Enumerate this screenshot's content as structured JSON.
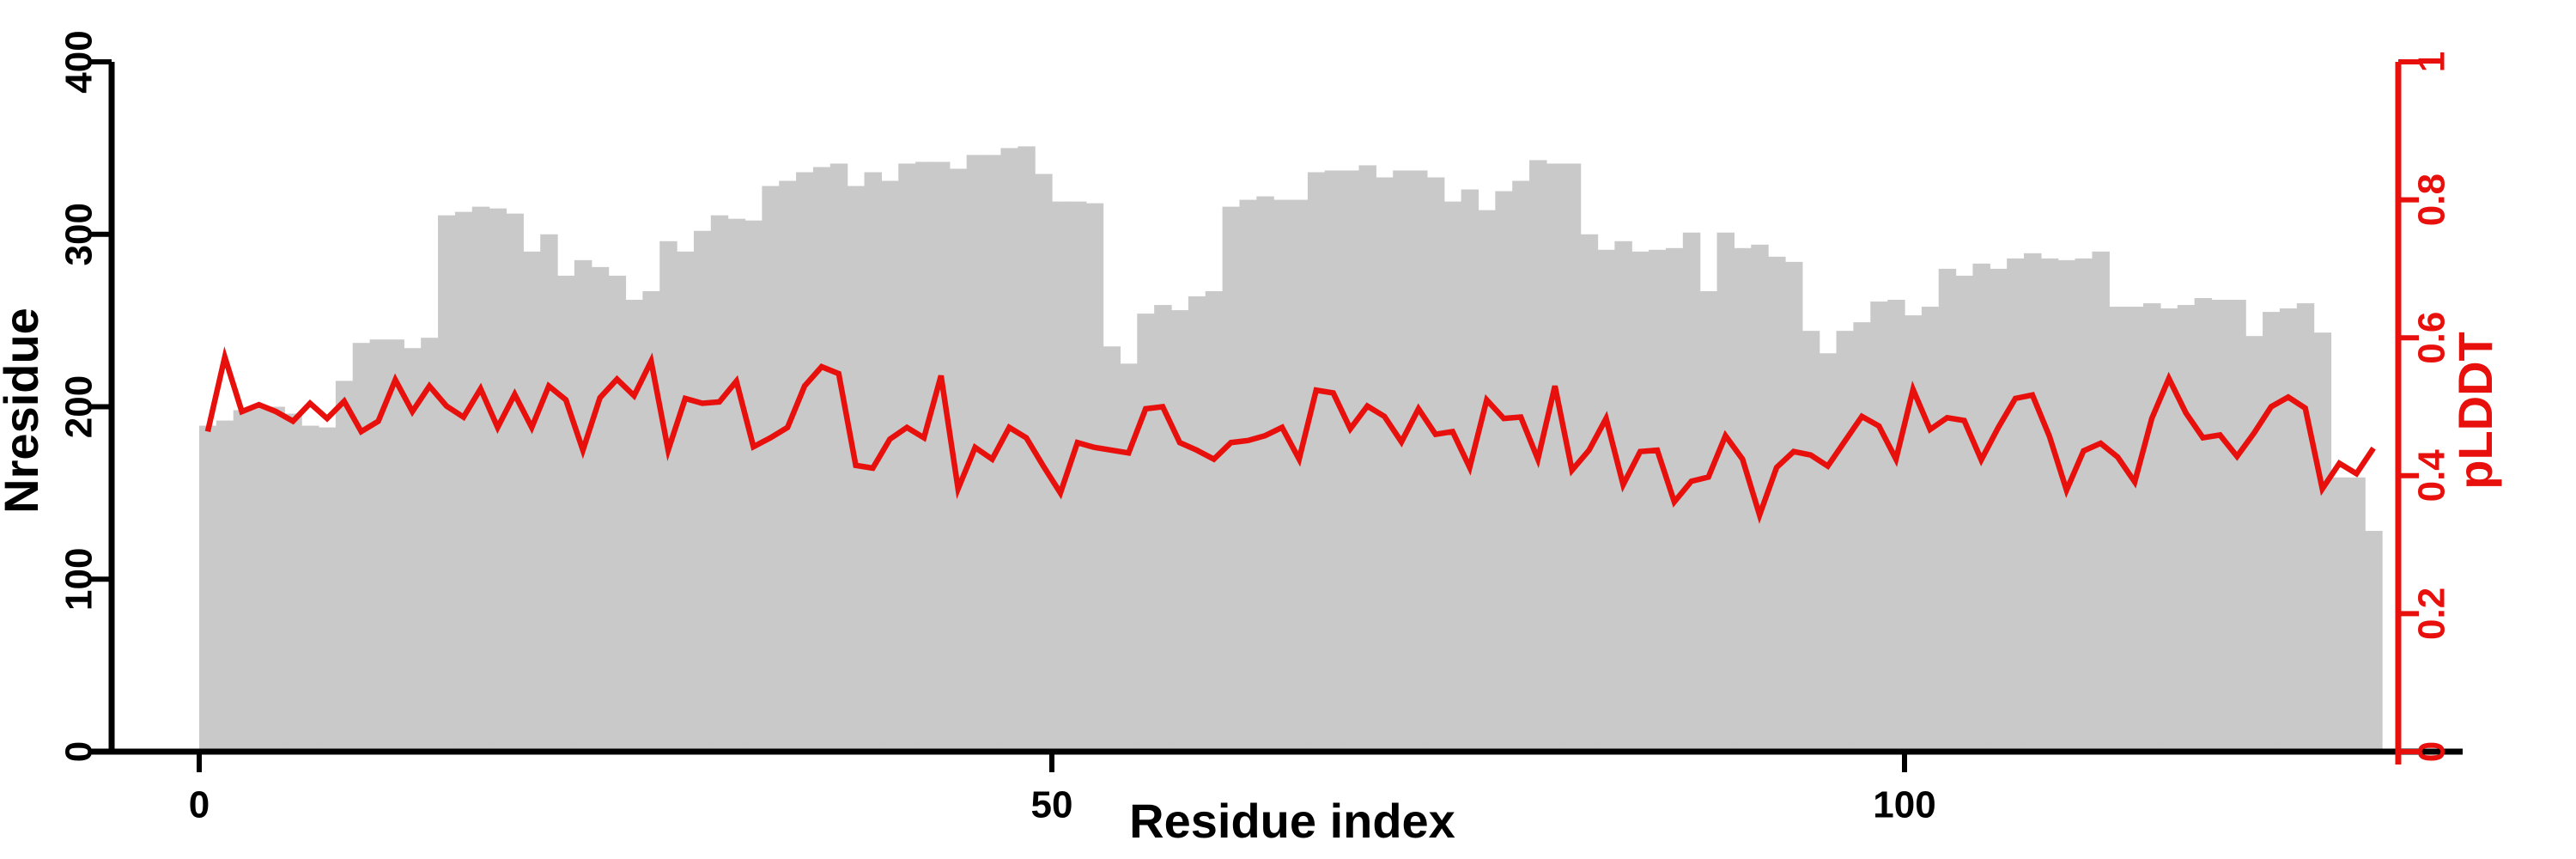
{
  "chart_data": {
    "type": "bar",
    "title": "",
    "xlabel": "Residue index",
    "ylabel_left": "Nresidue",
    "ylabel_right": "pLDDT",
    "colors": {
      "bar_fill": "#c9c9c9",
      "line_stroke": "#e8100c",
      "right_axis": "#e8100c",
      "left_axis": "#000000",
      "background": "#ffffff"
    },
    "legend_position": "none",
    "grid": false,
    "x_axis": {
      "ticks": [
        0,
        50,
        100
      ],
      "range": [
        0,
        130
      ]
    },
    "left_axis": {
      "ticks": [
        0,
        100,
        200,
        300,
        400
      ],
      "range": [
        0,
        400
      ]
    },
    "right_axis": {
      "ticks": [
        0,
        0.2,
        0.4,
        0.6,
        0.8,
        1
      ],
      "tick_labels": [
        "0",
        "0.2",
        "0.4",
        "0.6",
        "0.8",
        "1"
      ],
      "range": [
        0,
        1
      ]
    },
    "x_start": 0,
    "series": [
      {
        "name": "Nresidue",
        "render": "bar",
        "axis": "left",
        "values": [
          189,
          192,
          198,
          200,
          200,
          196,
          189,
          188,
          215,
          237,
          239,
          239,
          234,
          240,
          311,
          313,
          316,
          315,
          312,
          290,
          300,
          276,
          285,
          281,
          276,
          262,
          267,
          296,
          290,
          302,
          311,
          309,
          308,
          328,
          331,
          336,
          339,
          341,
          328,
          336,
          331,
          341,
          342,
          342,
          338,
          346,
          346,
          350,
          351,
          335,
          319,
          319,
          318,
          235,
          225,
          254,
          259,
          256,
          264,
          267,
          316,
          320,
          322,
          320,
          320,
          336,
          337,
          337,
          340,
          333,
          337,
          337,
          333,
          319,
          326,
          314,
          325,
          331,
          343,
          341,
          341,
          300,
          291,
          296,
          290,
          291,
          292,
          301,
          267,
          301,
          292,
          294,
          287,
          284,
          244,
          231,
          244,
          249,
          261,
          262,
          253,
          258,
          280,
          276,
          283,
          280,
          286,
          289,
          286,
          285,
          286,
          290,
          258,
          258,
          260,
          257,
          259,
          263,
          262,
          262,
          241,
          255,
          257,
          260,
          243,
          159,
          159,
          128
        ]
      },
      {
        "name": "pLDDT",
        "render": "line",
        "axis": "right",
        "values": [
          0.464,
          0.572,
          0.493,
          0.503,
          0.493,
          0.479,
          0.505,
          0.483,
          0.508,
          0.464,
          0.479,
          0.539,
          0.493,
          0.53,
          0.501,
          0.485,
          0.526,
          0.47,
          0.518,
          0.47,
          0.53,
          0.51,
          0.437,
          0.513,
          0.54,
          0.516,
          0.566,
          0.437,
          0.512,
          0.505,
          0.507,
          0.537,
          0.442,
          0.455,
          0.47,
          0.53,
          0.558,
          0.548,
          0.415,
          0.411,
          0.453,
          0.47,
          0.455,
          0.545,
          0.381,
          0.441,
          0.424,
          0.47,
          0.455,
          0.414,
          0.375,
          0.448,
          0.441,
          0.437,
          0.433,
          0.497,
          0.5,
          0.448,
          0.437,
          0.424,
          0.448,
          0.451,
          0.458,
          0.47,
          0.424,
          0.524,
          0.52,
          0.468,
          0.501,
          0.486,
          0.449,
          0.497,
          0.46,
          0.464,
          0.412,
          0.51,
          0.483,
          0.485,
          0.424,
          0.53,
          0.408,
          0.437,
          0.483,
          0.387,
          0.435,
          0.437,
          0.362,
          0.392,
          0.398,
          0.458,
          0.424,
          0.343,
          0.412,
          0.435,
          0.43,
          0.414,
          0.45,
          0.486,
          0.472,
          0.424,
          0.525,
          0.467,
          0.484,
          0.48,
          0.423,
          0.47,
          0.512,
          0.517,
          0.457,
          0.379,
          0.436,
          0.447,
          0.427,
          0.391,
          0.483,
          0.541,
          0.491,
          0.455,
          0.459,
          0.428,
          0.462,
          0.5,
          0.514,
          0.498,
          0.381,
          0.418,
          0.403,
          0.44
        ]
      }
    ]
  }
}
